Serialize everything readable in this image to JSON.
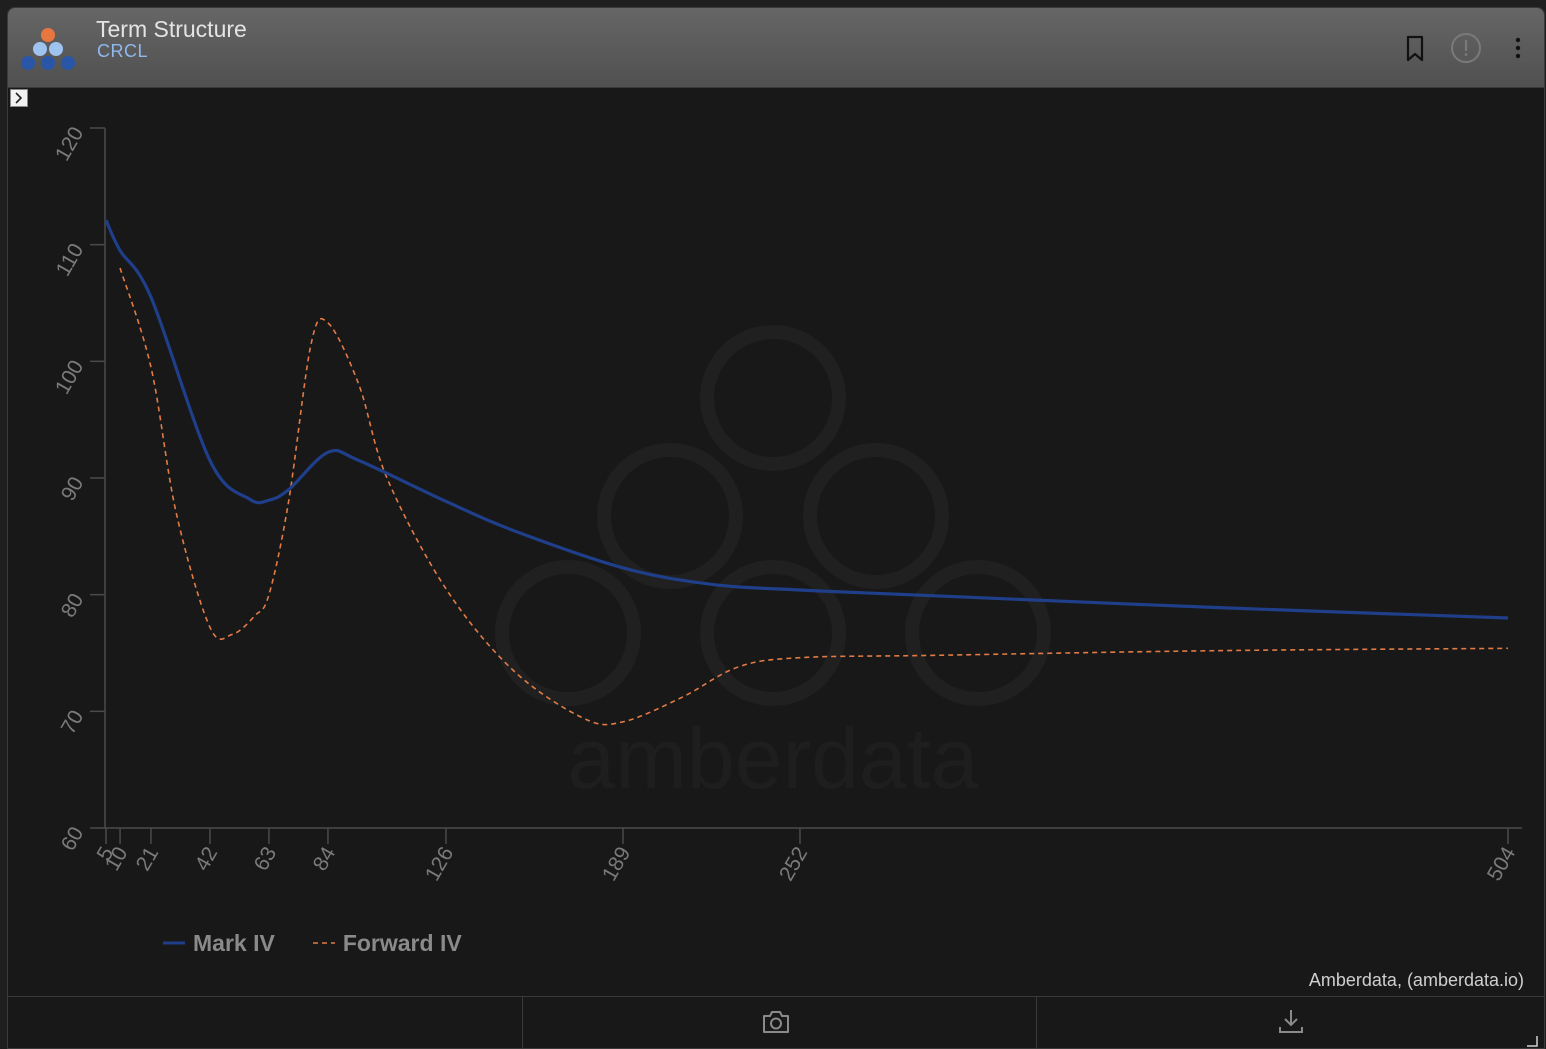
{
  "header": {
    "title": "Term Structure",
    "subtitle": "CRCL",
    "icons": [
      "bookmark-icon",
      "info-icon",
      "more-vertical-icon"
    ]
  },
  "footer": {
    "icons": [
      "camera-icon",
      "download-icon"
    ]
  },
  "credit": "Amberdata, (amberdata.io)",
  "watermark": "amberdata",
  "colors": {
    "mark_iv": "#1f3f8a",
    "forward_iv": "#e07b45",
    "axis": "#4a4a4a",
    "tick_label": "#7a7a7a"
  },
  "chart_data": {
    "type": "line",
    "title": "",
    "xlabel": "",
    "ylabel": "",
    "xlim": [
      5,
      504
    ],
    "ylim": [
      60,
      120
    ],
    "grid": false,
    "legend_position": "bottom-left",
    "x_ticks": [
      5,
      10,
      21,
      42,
      63,
      84,
      126,
      189,
      252,
      504
    ],
    "y_ticks": [
      60,
      70,
      80,
      90,
      100,
      110,
      120
    ],
    "series": [
      {
        "name": "Mark IV",
        "style": "solid",
        "points": [
          [
            5,
            112.1
          ],
          [
            10,
            109.5
          ],
          [
            21,
            105.5
          ],
          [
            42,
            91.5
          ],
          [
            56,
            88.2
          ],
          [
            63,
            88.1
          ],
          [
            70,
            89
          ],
          [
            84,
            92.2
          ],
          [
            95,
            91.5
          ],
          [
            126,
            88
          ],
          [
            150,
            85.5
          ],
          [
            189,
            82.3
          ],
          [
            220,
            80.9
          ],
          [
            252,
            80.4
          ],
          [
            300,
            79.9
          ],
          [
            400,
            78.9
          ],
          [
            504,
            78
          ]
        ]
      },
      {
        "name": "Forward IV",
        "style": "dashed",
        "points": [
          [
            10,
            108
          ],
          [
            21,
            99.5
          ],
          [
            30,
            87
          ],
          [
            42,
            77.2
          ],
          [
            50,
            76.6
          ],
          [
            58,
            78.2
          ],
          [
            63,
            80
          ],
          [
            70,
            88
          ],
          [
            78,
            101.5
          ],
          [
            84,
            103.3
          ],
          [
            95,
            98
          ],
          [
            105,
            90
          ],
          [
            126,
            80.5
          ],
          [
            150,
            73.5
          ],
          [
            175,
            69.4
          ],
          [
            189,
            69.1
          ],
          [
            210,
            71.2
          ],
          [
            230,
            73.8
          ],
          [
            252,
            74.6
          ],
          [
            300,
            74.8
          ],
          [
            400,
            75.2
          ],
          [
            504,
            75.4
          ]
        ]
      }
    ]
  }
}
